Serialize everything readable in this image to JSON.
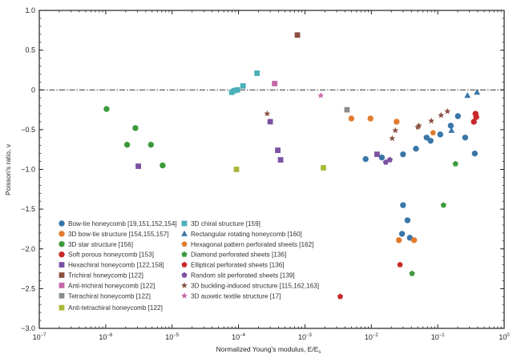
{
  "chart_data": {
    "type": "scatter",
    "title": "",
    "xlabel": "Normalized Young's modulus, E/E",
    "xlabel_sub": "s",
    "ylabel": "Poisson's ratio, ν",
    "xscale": "log",
    "xlim": [
      1e-07,
      1
    ],
    "ylim": [
      -3.0,
      1.0
    ],
    "grid": false,
    "reference_line": {
      "y": 0,
      "style": "dash-dot"
    },
    "x_ticks": [
      {
        "base": "10",
        "exp": "−7",
        "value": 1e-07
      },
      {
        "base": "10",
        "exp": "−6",
        "value": 1e-06
      },
      {
        "base": "10",
        "exp": "−5",
        "value": 1e-05
      },
      {
        "base": "10",
        "exp": "−4",
        "value": 0.0001
      },
      {
        "base": "10",
        "exp": "−3",
        "value": 0.001
      },
      {
        "base": "10",
        "exp": "−2",
        "value": 0.01
      },
      {
        "base": "10",
        "exp": "−1",
        "value": 0.1
      },
      {
        "base": "10",
        "exp": "0",
        "value": 1
      }
    ],
    "y_ticks": [
      {
        "label": "1.0",
        "value": 1.0
      },
      {
        "label": "0.5",
        "value": 0.5
      },
      {
        "label": "0",
        "value": 0
      },
      {
        "label": "−0.5",
        "value": -0.5
      },
      {
        "label": "−1.0",
        "value": -1.0
      },
      {
        "label": "−1.5",
        "value": -1.5
      },
      {
        "label": "−2.0",
        "value": -2.0
      },
      {
        "label": "−2.5",
        "value": -2.5
      },
      {
        "label": "−3.0",
        "value": -3.0
      }
    ],
    "legend_placement": "bottom-left",
    "series": [
      {
        "name": "Bow-tie honeycomb [19,151,152,154]",
        "marker": "circle",
        "color": "#3a76a8",
        "points": [
          [
            0.0082,
            -0.87
          ],
          [
            0.0144,
            -0.85
          ],
          [
            0.03,
            -0.81
          ],
          [
            0.047,
            -0.74
          ],
          [
            0.068,
            -0.6
          ],
          [
            0.078,
            -0.64
          ],
          [
            0.109,
            -0.56
          ],
          [
            0.157,
            -0.45
          ],
          [
            0.201,
            -0.33
          ],
          [
            0.259,
            -0.6
          ],
          [
            0.361,
            -0.8
          ],
          [
            0.03,
            -1.45
          ],
          [
            0.035,
            -1.64
          ],
          [
            0.029,
            -1.81
          ],
          [
            0.038,
            -1.86
          ]
        ]
      },
      {
        "name": "3D bow-tie structure [154,155,157]",
        "marker": "circle",
        "color": "#e07b2e",
        "points": [
          [
            0.005,
            -0.36
          ],
          [
            0.0097,
            -0.36
          ],
          [
            0.024,
            -0.4
          ],
          [
            0.026,
            -1.89
          ],
          [
            0.044,
            -1.89
          ]
        ]
      },
      {
        "name": "3D star structure [156]",
        "marker": "circle",
        "color": "#3c9a3c",
        "points": [
          [
            1.03e-06,
            -0.24
          ],
          [
            2.8e-06,
            -0.48
          ],
          [
            2.1e-06,
            -0.69
          ],
          [
            4.8e-06,
            -0.69
          ],
          [
            7.2e-06,
            -0.95
          ]
        ]
      },
      {
        "name": "Soft porous honeycomb [153]",
        "marker": "circle",
        "color": "#c8282a",
        "points": [
          [
            0.37,
            -0.3
          ],
          [
            0.38,
            -0.34
          ],
          [
            0.35,
            -0.4
          ]
        ]
      },
      {
        "name": "Hexachiral honeycomb [122,158]",
        "marker": "square",
        "color": "#7b52a3",
        "points": [
          [
            3.1e-06,
            -0.96
          ],
          [
            0.0003,
            -0.4
          ],
          [
            0.00039,
            -0.76
          ],
          [
            0.00043,
            -0.88
          ],
          [
            0.0122,
            -0.81
          ]
        ]
      },
      {
        "name": "Trichiral honeycomb [122]",
        "marker": "square",
        "color": "#8a5040",
        "points": [
          [
            0.00077,
            0.69
          ]
        ]
      },
      {
        "name": "Anti-trichiral honeycomb [122]",
        "marker": "square",
        "color": "#c466a8",
        "points": [
          [
            0.00035,
            0.08
          ]
        ]
      },
      {
        "name": "Tetrachiral honeycomb [122]",
        "marker": "square",
        "color": "#8c8c8c",
        "points": [
          [
            0.0043,
            -0.25
          ]
        ]
      },
      {
        "name": "Anti-tetrachiral honeycomb [122]",
        "marker": "square",
        "color": "#aab83a",
        "points": [
          [
            9.3e-05,
            -1.0
          ],
          [
            0.0019,
            -0.98
          ]
        ]
      },
      {
        "name": "3D chiral structure [159]",
        "marker": "square",
        "color": "#4ab0b8",
        "points": [
          [
            7.9e-05,
            -0.03
          ],
          [
            8.6e-05,
            -0.01
          ],
          [
            9.6e-05,
            0.0
          ],
          [
            0.000117,
            0.05
          ],
          [
            0.00019,
            0.21
          ]
        ]
      },
      {
        "name": "Rectangular rotating honeycomb [160]",
        "marker": "triangle",
        "color": "#3a76a8",
        "points": [
          [
            0.161,
            -0.51
          ],
          [
            0.28,
            -0.07
          ],
          [
            0.39,
            -0.03
          ]
        ]
      },
      {
        "name": "Hexagonal pattern perforated sheets [162]",
        "marker": "pentagon",
        "color": "#e07b2e",
        "points": [
          [
            0.085,
            -0.54
          ]
        ]
      },
      {
        "name": "Diamond perforated sheets [136]",
        "marker": "pentagon",
        "color": "#3c9a3c",
        "points": [
          [
            0.185,
            -0.93
          ],
          [
            0.122,
            -1.45
          ],
          [
            0.041,
            -2.31
          ]
        ]
      },
      {
        "name": "Elliptical perforated sheets [136]",
        "marker": "pentagon",
        "color": "#c8282a",
        "points": [
          [
            0.027,
            -2.2
          ],
          [
            0.0034,
            -2.6
          ]
        ]
      },
      {
        "name": "Random slit perforated sheets [139]",
        "marker": "pentagon",
        "color": "#7b52a3",
        "points": [
          [
            0.0165,
            -0.91
          ],
          [
            0.019,
            -0.88
          ]
        ]
      },
      {
        "name": "3D buckling-induced structure [115,162,163]",
        "marker": "star",
        "color": "#8a5040",
        "points": [
          [
            0.00027,
            -0.3
          ],
          [
            0.0206,
            -0.61
          ],
          [
            0.023,
            -0.51
          ],
          [
            0.052,
            -0.45
          ],
          [
            0.05,
            -0.47
          ],
          [
            0.08,
            -0.39
          ],
          [
            0.112,
            -0.32
          ],
          [
            0.14,
            -0.27
          ]
        ]
      },
      {
        "name": "3D auxetic textile structure [17]",
        "marker": "star",
        "color": "#c466a8",
        "points": [
          [
            0.00173,
            -0.07
          ]
        ]
      }
    ]
  }
}
